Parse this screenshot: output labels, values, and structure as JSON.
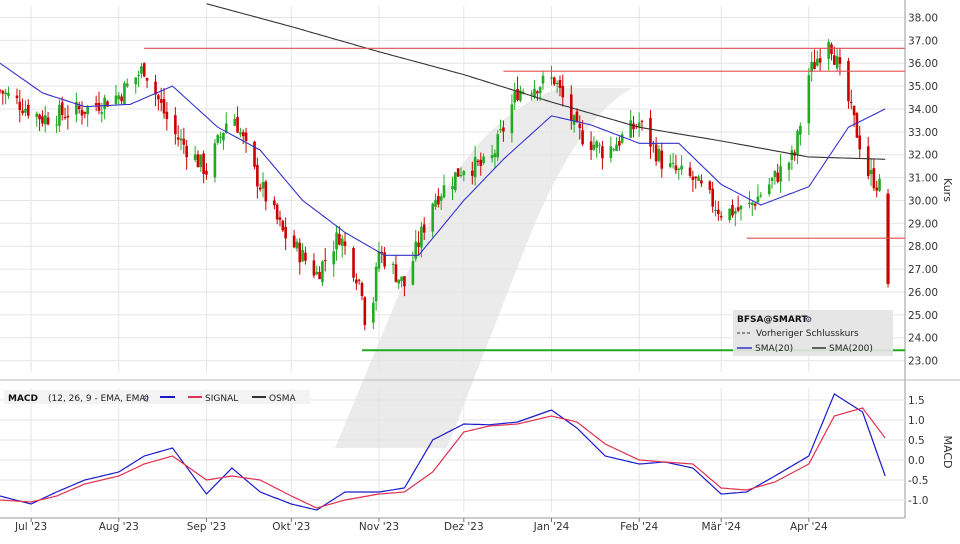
{
  "chart_data": [
    {
      "type": "candlestick",
      "name": "price_panel",
      "ylabel": "Kurs",
      "ylim": [
        22.5,
        38.5
      ],
      "yticks": [
        "38.00",
        "37.00",
        "36.00",
        "35.00",
        "34.00",
        "33.00",
        "32.00",
        "31.00",
        "30.00",
        "29.00",
        "28.00",
        "27.00",
        "26.00",
        "25.00",
        "24.00",
        "23.00"
      ],
      "grid": true,
      "legend": {
        "placement": "bottom-right",
        "symbol": "BFSA@SMART",
        "items": [
          {
            "label": "Vorheriger Schlusskurs",
            "style": "dashed",
            "color": "#333333"
          },
          {
            "label": "SMA(20)",
            "color": "#3333cc"
          },
          {
            "label": "SMA(200)",
            "color": "#333333"
          }
        ]
      },
      "horizontal_lines": [
        {
          "value": 36.65,
          "color": "#e05050",
          "from": "2023-08-10",
          "to": "2024-05-05"
        },
        {
          "value": 35.65,
          "color": "#e05050",
          "from": "2023-12-15",
          "to": "2024-05-05"
        },
        {
          "value": 28.35,
          "color": "#e05050",
          "from": "2024-03-10",
          "to": "2024-05-05"
        },
        {
          "value": 23.45,
          "color": "#22aa22",
          "from": "2023-10-26",
          "to": "2024-05-05"
        }
      ],
      "last_candle": {
        "date": "2024-04-29",
        "open": 30.3,
        "high": 30.5,
        "low": 26.2,
        "close": 26.35,
        "color": "#cc0000"
      },
      "sma20_anchor_points": [
        [
          "2023-06-20",
          36.0
        ],
        [
          "2023-07-05",
          34.7
        ],
        [
          "2023-07-20",
          34.1
        ],
        [
          "2023-08-05",
          34.2
        ],
        [
          "2023-08-20",
          35.0
        ],
        [
          "2023-09-05",
          33.2
        ],
        [
          "2023-09-20",
          32.2
        ],
        [
          "2023-10-05",
          30.0
        ],
        [
          "2023-10-20",
          28.6
        ],
        [
          "2023-11-03",
          27.6
        ],
        [
          "2023-11-15",
          27.6
        ],
        [
          "2023-12-01",
          30.0
        ],
        [
          "2023-12-15",
          31.8
        ],
        [
          "2024-01-01",
          33.7
        ],
        [
          "2024-01-15",
          33.3
        ],
        [
          "2024-02-01",
          32.5
        ],
        [
          "2024-02-15",
          32.5
        ],
        [
          "2024-03-01",
          30.7
        ],
        [
          "2024-03-15",
          29.8
        ],
        [
          "2024-04-01",
          30.6
        ],
        [
          "2024-04-15",
          33.2
        ],
        [
          "2024-04-28",
          34.0
        ]
      ],
      "sma200_anchor_points": [
        [
          "2023-09-01",
          38.6
        ],
        [
          "2023-10-01",
          37.6
        ],
        [
          "2023-11-01",
          36.5
        ],
        [
          "2023-12-01",
          35.5
        ],
        [
          "2024-01-01",
          34.3
        ],
        [
          "2024-02-01",
          33.2
        ],
        [
          "2024-03-01",
          32.6
        ],
        [
          "2024-04-01",
          31.9
        ],
        [
          "2024-04-28",
          31.8
        ]
      ],
      "close_anchor_points": [
        [
          "2023-06-20",
          34.8
        ],
        [
          "2023-07-05",
          33.6
        ],
        [
          "2023-07-20",
          34.0
        ],
        [
          "2023-08-01",
          34.6
        ],
        [
          "2023-08-10",
          35.8
        ],
        [
          "2023-08-20",
          33.0
        ],
        [
          "2023-09-01",
          31.3
        ],
        [
          "2023-09-10",
          34.0
        ],
        [
          "2023-09-18",
          31.2
        ],
        [
          "2023-09-28",
          28.6
        ],
        [
          "2023-10-10",
          26.8
        ],
        [
          "2023-10-18",
          28.5
        ],
        [
          "2023-10-26",
          26.2
        ],
        [
          "2023-10-28",
          23.6
        ],
        [
          "2023-11-01",
          27.8
        ],
        [
          "2023-11-10",
          26.3
        ],
        [
          "2023-11-20",
          30.0
        ],
        [
          "2023-12-01",
          31.5
        ],
        [
          "2023-12-10",
          31.5
        ],
        [
          "2023-12-20",
          34.8
        ],
        [
          "2024-01-02",
          35.3
        ],
        [
          "2024-01-10",
          33.0
        ],
        [
          "2024-01-20",
          32.1
        ],
        [
          "2024-02-01",
          33.4
        ],
        [
          "2024-02-10",
          31.5
        ],
        [
          "2024-02-20",
          30.9
        ],
        [
          "2024-03-01",
          29.5
        ],
        [
          "2024-03-10",
          29.6
        ],
        [
          "2024-03-20",
          31.0
        ],
        [
          "2024-03-27",
          32.0
        ],
        [
          "2024-04-01",
          35.5
        ],
        [
          "2024-04-08",
          37.2
        ],
        [
          "2024-04-15",
          34.3
        ],
        [
          "2024-04-22",
          31.2
        ],
        [
          "2024-04-28",
          30.3
        ]
      ]
    },
    {
      "type": "line",
      "name": "macd_panel",
      "ylabel": "MACD",
      "ylim": [
        -1.3,
        1.8
      ],
      "yticks": [
        "1.5",
        "1.0",
        "0.5",
        "0.0",
        "-0.5",
        "-1.0"
      ],
      "grid": true,
      "legend": {
        "placement": "top-left",
        "title": "MACD",
        "params": "(12, 26, 9 - EMA, EMA)",
        "items": [
          {
            "label": "",
            "color": "#1a1acc"
          },
          {
            "label": "SIGNAL",
            "color": "#e03050"
          },
          {
            "label": "OSMA",
            "color": "#333333"
          }
        ]
      },
      "series": [
        {
          "name": "MACD",
          "color": "#1a1acc",
          "points": [
            [
              "2023-06-20",
              -0.9
            ],
            [
              "2023-07-01",
              -1.1
            ],
            [
              "2023-07-10",
              -0.8
            ],
            [
              "2023-07-20",
              -0.5
            ],
            [
              "2023-08-01",
              -0.3
            ],
            [
              "2023-08-10",
              0.1
            ],
            [
              "2023-08-20",
              0.3
            ],
            [
              "2023-09-01",
              -0.85
            ],
            [
              "2023-09-10",
              -0.2
            ],
            [
              "2023-09-20",
              -0.8
            ],
            [
              "2023-10-01",
              -1.1
            ],
            [
              "2023-10-10",
              -1.25
            ],
            [
              "2023-10-20",
              -0.8
            ],
            [
              "2023-11-01",
              -0.8
            ],
            [
              "2023-11-10",
              -0.7
            ],
            [
              "2023-11-20",
              0.5
            ],
            [
              "2023-12-01",
              0.9
            ],
            [
              "2023-12-10",
              0.88
            ],
            [
              "2023-12-20",
              0.95
            ],
            [
              "2024-01-01",
              1.25
            ],
            [
              "2024-01-10",
              0.8
            ],
            [
              "2024-01-20",
              0.1
            ],
            [
              "2024-02-01",
              -0.1
            ],
            [
              "2024-02-10",
              -0.05
            ],
            [
              "2024-02-20",
              -0.2
            ],
            [
              "2024-03-01",
              -0.85
            ],
            [
              "2024-03-10",
              -0.8
            ],
            [
              "2024-03-20",
              -0.4
            ],
            [
              "2024-04-01",
              0.1
            ],
            [
              "2024-04-10",
              1.65
            ],
            [
              "2024-04-20",
              1.2
            ],
            [
              "2024-04-28",
              -0.4
            ]
          ]
        },
        {
          "name": "SIGNAL",
          "color": "#e03050",
          "points": [
            [
              "2023-06-20",
              -1.0
            ],
            [
              "2023-07-01",
              -1.05
            ],
            [
              "2023-07-10",
              -0.9
            ],
            [
              "2023-07-20",
              -0.6
            ],
            [
              "2023-08-01",
              -0.4
            ],
            [
              "2023-08-10",
              -0.1
            ],
            [
              "2023-08-20",
              0.1
            ],
            [
              "2023-09-01",
              -0.5
            ],
            [
              "2023-09-10",
              -0.4
            ],
            [
              "2023-09-20",
              -0.5
            ],
            [
              "2023-10-01",
              -0.9
            ],
            [
              "2023-10-10",
              -1.2
            ],
            [
              "2023-10-20",
              -1.0
            ],
            [
              "2023-11-01",
              -0.85
            ],
            [
              "2023-11-10",
              -0.8
            ],
            [
              "2023-11-20",
              -0.3
            ],
            [
              "2023-12-01",
              0.7
            ],
            [
              "2023-12-10",
              0.85
            ],
            [
              "2023-12-20",
              0.9
            ],
            [
              "2024-01-01",
              1.1
            ],
            [
              "2024-01-10",
              0.95
            ],
            [
              "2024-01-20",
              0.4
            ],
            [
              "2024-02-01",
              0.0
            ],
            [
              "2024-02-10",
              -0.05
            ],
            [
              "2024-02-20",
              -0.1
            ],
            [
              "2024-03-01",
              -0.7
            ],
            [
              "2024-03-10",
              -0.75
            ],
            [
              "2024-03-20",
              -0.55
            ],
            [
              "2024-04-01",
              -0.1
            ],
            [
              "2024-04-10",
              1.1
            ],
            [
              "2024-04-20",
              1.3
            ],
            [
              "2024-04-28",
              0.55
            ]
          ]
        }
      ]
    }
  ],
  "x_axis": {
    "ticks": [
      {
        "label": "Jul '23",
        "date": "2023-07-01"
      },
      {
        "label": "Aug '23",
        "date": "2023-08-01"
      },
      {
        "label": "Sep '23",
        "date": "2023-09-01"
      },
      {
        "label": "Okt '23",
        "date": "2023-10-01"
      },
      {
        "label": "Nov '23",
        "date": "2023-11-01"
      },
      {
        "label": "Dez '23",
        "date": "2023-12-01"
      },
      {
        "label": "Jan '24",
        "date": "2024-01-01"
      },
      {
        "label": "Feb '24",
        "date": "2024-02-01"
      },
      {
        "label": "Mär '24",
        "date": "2024-03-01"
      },
      {
        "label": "Apr '24",
        "date": "2024-04-01"
      }
    ],
    "range": [
      "2023-06-20",
      "2024-05-05"
    ]
  },
  "colors": {
    "up": "#22aa22",
    "down": "#cc0000",
    "grid": "#e6e6e6",
    "axis_text": "#333333",
    "legend_bg": "#e4e4e4",
    "watermark": "#e8e8e8"
  }
}
